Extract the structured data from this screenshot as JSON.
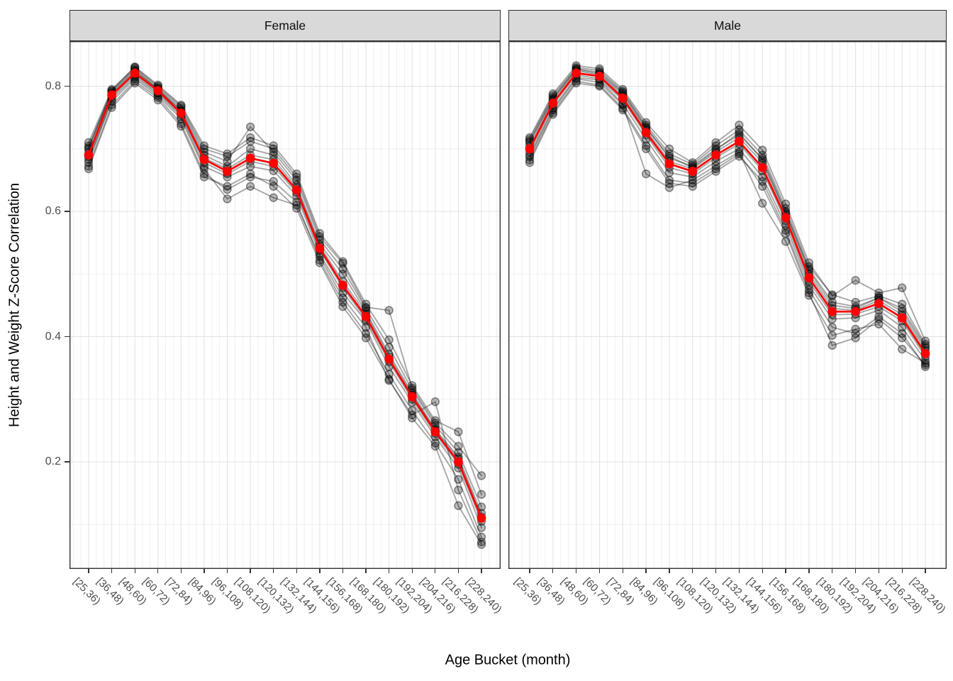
{
  "chart_data": {
    "type": "line",
    "xlabel": "Age Bucket (month)",
    "ylabel": "Height and Weight Z-Score Correlation",
    "categories": [
      "[25,36)",
      "[36,48)",
      "[48,60)",
      "[60,72)",
      "[72,84)",
      "[84,96)",
      "[96,108)",
      "[108,120)",
      "[120,132)",
      "[132,144)",
      "[144,156)",
      "[156,168)",
      "[168,180)",
      "[180,192)",
      "[192,204)",
      "[204,216)",
      "[216,228)",
      "[228,240)"
    ],
    "yticks": [
      0.2,
      0.4,
      0.6,
      0.8
    ],
    "ylim": [
      0.029,
      0.872
    ],
    "grid": "on",
    "legend": "none",
    "colors": {
      "mean_line": "#FF0000",
      "individual_lines": "rgba(0,0,0,0.34)",
      "individual_point_fill": "rgba(0,0,0,0.27)",
      "individual_point_stroke": "rgba(0,0,0,0.42)",
      "strip_fill": "#D9D9D9",
      "panel_border": "#333333",
      "gridline_major": "#E4E4E4",
      "gridline_minor": "#EDEDED",
      "axis_text": "#4D4D4D"
    },
    "facets": [
      {
        "label": "Female",
        "mean": [
          0.69,
          0.786,
          0.821,
          0.793,
          0.757,
          0.683,
          0.664,
          0.685,
          0.677,
          0.634,
          0.541,
          0.482,
          0.432,
          0.364,
          0.304,
          0.248,
          0.2,
          0.11
        ],
        "series": [
          [
            0.702,
            0.79,
            0.826,
            0.795,
            0.762,
            0.69,
            0.672,
            0.7,
            0.69,
            0.642,
            0.548,
            0.5,
            0.44,
            0.372,
            0.31,
            0.252,
            0.208,
            0.118
          ],
          [
            0.678,
            0.78,
            0.815,
            0.788,
            0.752,
            0.672,
            0.655,
            0.672,
            0.665,
            0.625,
            0.532,
            0.47,
            0.425,
            0.352,
            0.295,
            0.24,
            0.19,
            0.095
          ],
          [
            0.71,
            0.795,
            0.83,
            0.8,
            0.768,
            0.7,
            0.688,
            0.712,
            0.7,
            0.655,
            0.56,
            0.517,
            0.447,
            0.442,
            0.318,
            0.262,
            0.225,
            0.178
          ],
          [
            0.672,
            0.77,
            0.808,
            0.782,
            0.74,
            0.66,
            0.635,
            0.655,
            0.648,
            0.615,
            0.522,
            0.455,
            0.405,
            0.34,
            0.282,
            0.23,
            0.172,
            0.08
          ],
          [
            0.695,
            0.788,
            0.824,
            0.796,
            0.76,
            0.685,
            0.668,
            0.69,
            0.683,
            0.638,
            0.545,
            0.488,
            0.437,
            0.368,
            0.307,
            0.25,
            0.205,
            0.112
          ],
          [
            0.683,
            0.776,
            0.812,
            0.785,
            0.748,
            0.668,
            0.62,
            0.64,
            0.622,
            0.61,
            0.528,
            0.462,
            0.415,
            0.33,
            0.275,
            0.296,
            0.155,
            0.072
          ],
          [
            0.7,
            0.792,
            0.828,
            0.798,
            0.765,
            0.695,
            0.68,
            0.735,
            0.695,
            0.65,
            0.555,
            0.508,
            0.445,
            0.383,
            0.315,
            0.258,
            0.215,
            0.128
          ],
          [
            0.687,
            0.783,
            0.818,
            0.79,
            0.755,
            0.678,
            0.66,
            0.68,
            0.672,
            0.63,
            0.538,
            0.478,
            0.428,
            0.36,
            0.3,
            0.245,
            0.196,
            0.105
          ],
          [
            0.705,
            0.793,
            0.831,
            0.802,
            0.77,
            0.705,
            0.692,
            0.718,
            0.705,
            0.66,
            0.565,
            0.52,
            0.452,
            0.395,
            0.322,
            0.266,
            0.248,
            0.148
          ],
          [
            0.668,
            0.766,
            0.805,
            0.778,
            0.736,
            0.655,
            0.64,
            0.66,
            0.64,
            0.605,
            0.518,
            0.448,
            0.398,
            0.332,
            0.27,
            0.225,
            0.13,
            0.068
          ]
        ]
      },
      {
        "label": "Male",
        "mean": [
          0.7,
          0.773,
          0.821,
          0.816,
          0.781,
          0.726,
          0.676,
          0.664,
          0.69,
          0.712,
          0.67,
          0.59,
          0.494,
          0.44,
          0.44,
          0.453,
          0.43,
          0.373
        ],
        "series": [
          [
            0.712,
            0.782,
            0.828,
            0.822,
            0.79,
            0.735,
            0.685,
            0.672,
            0.7,
            0.722,
            0.685,
            0.6,
            0.505,
            0.45,
            0.445,
            0.462,
            0.44,
            0.382
          ],
          [
            0.69,
            0.765,
            0.814,
            0.81,
            0.772,
            0.715,
            0.662,
            0.655,
            0.68,
            0.7,
            0.655,
            0.578,
            0.482,
            0.428,
            0.43,
            0.442,
            0.415,
            0.362
          ],
          [
            0.718,
            0.788,
            0.833,
            0.828,
            0.795,
            0.742,
            0.7,
            0.678,
            0.71,
            0.738,
            0.698,
            0.612,
            0.518,
            0.465,
            0.49,
            0.47,
            0.478,
            0.393
          ],
          [
            0.682,
            0.758,
            0.808,
            0.802,
            0.765,
            0.705,
            0.65,
            0.645,
            0.668,
            0.692,
            0.64,
            0.565,
            0.47,
            0.386,
            0.398,
            0.428,
            0.398,
            0.355
          ],
          [
            0.705,
            0.778,
            0.825,
            0.818,
            0.785,
            0.73,
            0.68,
            0.668,
            0.695,
            0.718,
            0.678,
            0.595,
            0.5,
            0.445,
            0.442,
            0.458,
            0.435,
            0.378
          ],
          [
            0.687,
            0.762,
            0.812,
            0.806,
            0.77,
            0.66,
            0.638,
            0.65,
            0.673,
            0.695,
            0.613,
            0.552,
            0.466,
            0.402,
            0.412,
            0.42,
            0.38,
            0.358
          ],
          [
            0.715,
            0.785,
            0.83,
            0.825,
            0.792,
            0.738,
            0.692,
            0.675,
            0.705,
            0.73,
            0.69,
            0.605,
            0.512,
            0.467,
            0.455,
            0.465,
            0.452,
            0.388
          ],
          [
            0.695,
            0.77,
            0.818,
            0.812,
            0.778,
            0.722,
            0.67,
            0.66,
            0.686,
            0.708,
            0.665,
            0.585,
            0.488,
            0.435,
            0.436,
            0.448,
            0.425,
            0.368
          ],
          [
            0.71,
            0.78,
            0.827,
            0.82,
            0.788,
            0.733,
            0.688,
            0.67,
            0.698,
            0.726,
            0.682,
            0.598,
            0.508,
            0.455,
            0.448,
            0.462,
            0.445,
            0.385
          ],
          [
            0.678,
            0.755,
            0.805,
            0.8,
            0.762,
            0.7,
            0.645,
            0.64,
            0.664,
            0.688,
            0.648,
            0.57,
            0.475,
            0.415,
            0.405,
            0.432,
            0.405,
            0.352
          ]
        ]
      }
    ]
  }
}
